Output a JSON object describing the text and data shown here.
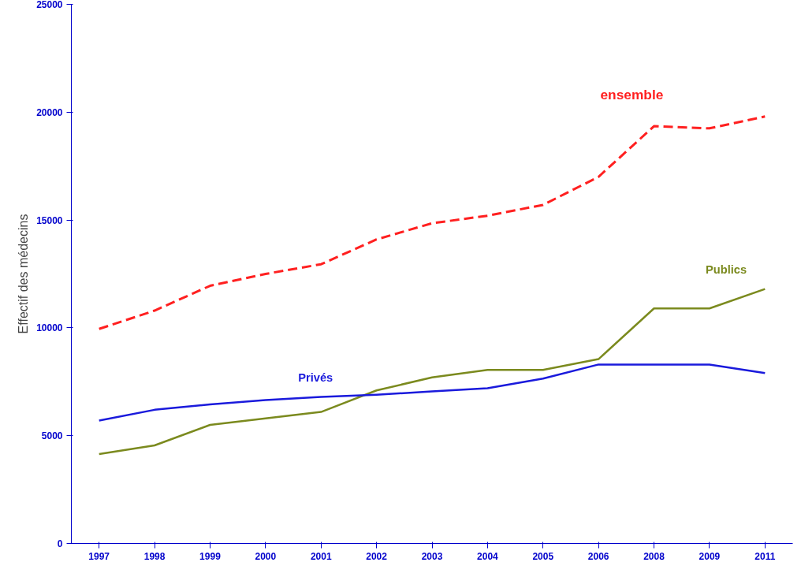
{
  "chart_data": {
    "type": "line",
    "ylabel": "Effectif des médecins",
    "categories": [
      "1997",
      "1998",
      "1999",
      "2000",
      "2001",
      "2002",
      "2003",
      "2004",
      "2005",
      "2006",
      "2008",
      "2009",
      "2011"
    ],
    "series": [
      {
        "name": "ensemble",
        "color": "#ff2020",
        "line_style": "dashed",
        "values": [
          9950,
          10800,
          11950,
          12500,
          12950,
          14100,
          14850,
          15200,
          15700,
          17000,
          19350,
          19250,
          19800
        ]
      },
      {
        "name": "Publics",
        "color": "#7b8a1e",
        "line_style": "solid",
        "values": [
          4150,
          4550,
          5500,
          5800,
          6100,
          7100,
          7700,
          8050,
          8050,
          8550,
          10900,
          10900,
          11800
        ]
      },
      {
        "name": "Privés",
        "color": "#1a1adc",
        "line_style": "solid",
        "values": [
          5700,
          6200,
          6450,
          6650,
          6800,
          6900,
          7050,
          7200,
          7650,
          8300,
          8300,
          8300,
          7900
        ]
      }
    ],
    "ylim": [
      0,
      25000
    ],
    "yticks": [
      0,
      5000,
      10000,
      15000,
      20000,
      25000
    ],
    "grid": false,
    "marker": "none"
  }
}
